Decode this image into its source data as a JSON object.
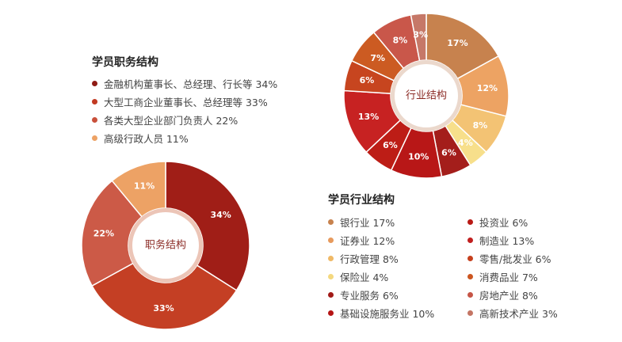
{
  "chart_data": [
    {
      "type": "pie",
      "title": "学员职务结构",
      "center_label": "职务结构",
      "categories": [
        "金融机构董事长、总经理、行长等",
        "大型工商企业董事长、总经理等",
        "各类大型企业部门负责人",
        "高级行政人员"
      ],
      "values": [
        34,
        33,
        22,
        11
      ],
      "value_labels": [
        "34%",
        "33%",
        "22%",
        "11%"
      ],
      "legend_labels": [
        "金融机构董事长、总经理、行长等 34%",
        "大型工商企业董事长、总经理等 33%",
        "各类大型企业部门负责人 22%",
        "高级行政人员 11%"
      ],
      "colors": [
        "#a01e17",
        "#c43f24",
        "#cc5a47",
        "#eda265"
      ],
      "legend_dot_colors": [
        "#8f1c15",
        "#c23a22",
        "#c9503b",
        "#eda265"
      ]
    },
    {
      "type": "pie",
      "title": "学员行业结构",
      "center_label": "行业结构",
      "categories": [
        "银行业",
        "证券业",
        "行政管理",
        "保险业",
        "专业服务",
        "基础设施服务业",
        "投资业",
        "制造业",
        "零售/批发业",
        "消费品业",
        "房地产业",
        "高新技术产业"
      ],
      "values": [
        17,
        12,
        8,
        4,
        6,
        10,
        6,
        13,
        6,
        7,
        8,
        3
      ],
      "value_labels": [
        "17%",
        "12%",
        "8%",
        "4%",
        "6%",
        "10%",
        "6%",
        "13%",
        "6%",
        "7%",
        "8%",
        "3%"
      ],
      "legend_labels": [
        "银行业 17%",
        "证券业 12%",
        "行政管理 8%",
        "保险业 4%",
        "专业服务 6%",
        "基础设施服务业 10%",
        "投资业 6%",
        "制造业 13%",
        "零售/批发业 6%",
        "消费品业 7%",
        "房地产业 8%",
        "高新技术产业 3%"
      ],
      "colors": [
        "#c7824e",
        "#eda363",
        "#f3c374",
        "#f7df8b",
        "#a41e1b",
        "#b81717",
        "#bd1d16",
        "#c72222",
        "#c7451f",
        "#cc5b22",
        "#c9574a",
        "#c67868"
      ],
      "legend_dot_colors": [
        "#c7824e",
        "#e79a5d",
        "#f0b966",
        "#f4d87f",
        "#a11a17",
        "#b51515",
        "#b91a15",
        "#c11f1f",
        "#c6401d",
        "#cc5620",
        "#c65546",
        "#c47564"
      ]
    }
  ]
}
